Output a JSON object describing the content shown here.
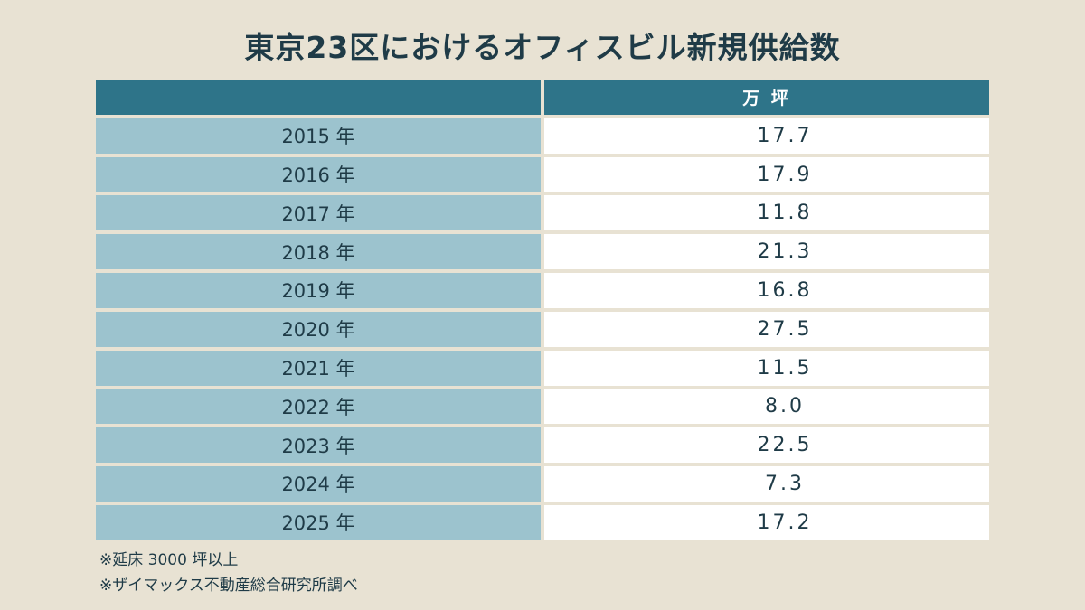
{
  "title": "東京23区におけるオフィスビル新規供給数",
  "chart_data": {
    "type": "table",
    "title": "東京23区におけるオフィスビル新規供給数",
    "columns": [
      "",
      "万 坪"
    ],
    "rows": [
      {
        "year": "2015 年",
        "value": "17.7"
      },
      {
        "year": "2016 年",
        "value": "17.9"
      },
      {
        "year": "2017 年",
        "value": "11.8"
      },
      {
        "year": "2018 年",
        "value": "21.3"
      },
      {
        "year": "2019 年",
        "value": "16.8"
      },
      {
        "year": "2020 年",
        "value": "27.5"
      },
      {
        "year": "2021 年",
        "value": "11.5"
      },
      {
        "year": "2022 年",
        "value": "8.0"
      },
      {
        "year": "2023 年",
        "value": "22.5"
      },
      {
        "year": "2024 年",
        "value": "7.3"
      },
      {
        "year": "2025 年",
        "value": "17.2"
      }
    ]
  },
  "notes": [
    "※延床 3000 坪以上",
    "※ザイマックス不動産総合研究所調べ"
  ]
}
